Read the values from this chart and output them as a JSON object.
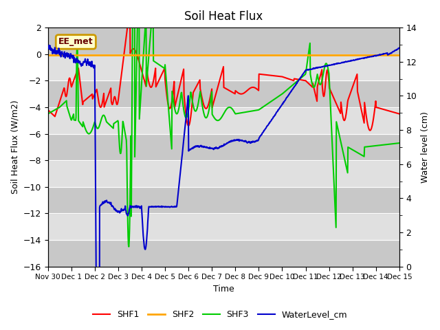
{
  "title": "Soil Heat Flux",
  "xlabel": "Time",
  "ylabel_left": "Soil Heat Flux (W/m2)",
  "ylabel_right": "Water level (cm)",
  "ylim_left": [
    -16,
    2
  ],
  "ylim_right": [
    0,
    14
  ],
  "yticks_left": [
    -16,
    -14,
    -12,
    -10,
    -8,
    -6,
    -4,
    -2,
    0,
    2
  ],
  "yticks_right": [
    0,
    2,
    4,
    6,
    8,
    10,
    12,
    14
  ],
  "plot_bg_color": "#d3d3d3",
  "annotation_text": "EE_met",
  "annotation_bg": "#ffffcc",
  "annotation_border": "#cc9900",
  "x_tick_labels": [
    "Nov 30",
    "Dec 1",
    "Dec 2",
    "Dec 3",
    "Dec 4",
    "Dec 5",
    "Dec 6",
    "Dec 7",
    "Dec 8",
    "Dec 9",
    "Dec 10",
    "Dec 11",
    "Dec 12",
    "Dec 13",
    "Dec 14",
    "Dec 15"
  ],
  "shf1_color": "#ff0000",
  "shf2_color": "#ffa500",
  "shf3_color": "#00cc00",
  "water_color": "#0000cc",
  "line_width": 1.5,
  "band_color_dark": "#c8c8c8",
  "band_color_light": "#e0e0e0"
}
